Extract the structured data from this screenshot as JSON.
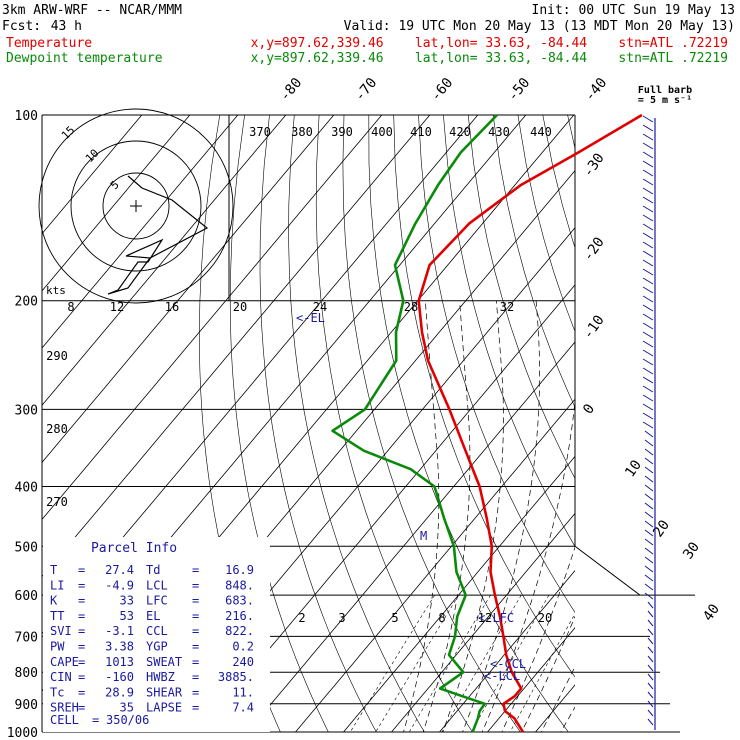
{
  "header": {
    "model": "3km ARW-WRF -- NCAR/MMM",
    "init": "Init: 00 UTC Sun 19 May 13",
    "fcst_label": "Fcst:",
    "fcst_value": "43 h",
    "valid": "Valid: 19 UTC Mon 20 May 13 (13 MDT Mon 20 May 13)",
    "temp_legend": "Temperature",
    "dew_legend": "Dewpoint temperature",
    "loc_line": "x,y=897.62,339.46    lat,lon= 33.63, -84.44    stn=ATL .72219",
    "full_barb_line1": "Full barb",
    "full_barb_line2": "= 5 m s⁻¹"
  },
  "colors": {
    "temperature": "#e00000",
    "dewpoint": "#0a8a0a",
    "wind": "#1a1aa0",
    "grid": "#000000"
  },
  "chart_data": {
    "type": "line",
    "subtype": "skew-T log-P diagram",
    "pressure_levels": [
      100,
      200,
      300,
      400,
      500,
      600,
      700,
      800,
      900,
      1000
    ],
    "pressure_axis_scale": "log",
    "isotherm_top_labels": [
      "-80",
      "-70",
      "-60",
      "-50",
      "-40"
    ],
    "isotherm_right_labels": [
      "-30",
      "-20",
      "-10",
      "0",
      "10",
      "20",
      "30",
      "40"
    ],
    "theta_labels": [
      "370",
      "380",
      "390",
      "400",
      "410",
      "420",
      "430",
      "440"
    ],
    "theta_left_labels": [
      "290",
      "280",
      "270"
    ],
    "mixing_ratio_labels_upper": [
      "8",
      "12",
      "16",
      "20",
      "24",
      "28",
      "32"
    ],
    "mixing_ratio_labels_lower": [
      "2",
      "3",
      "5",
      "8",
      "12",
      "20"
    ],
    "series": [
      {
        "name": "Temperature",
        "p": [
          1000,
          950,
          925,
          900,
          875,
          850,
          800,
          750,
          700,
          650,
          600,
          550,
          500,
          450,
          400,
          350,
          300,
          250,
          225,
          200,
          175,
          150,
          130,
          115,
          100
        ],
        "t": [
          27.4,
          23.2,
          20.0,
          18.4,
          19.4,
          19.4,
          14.6,
          10.4,
          6.6,
          2.4,
          -2.4,
          -7.4,
          -11.6,
          -17.6,
          -24.6,
          -33.8,
          -44.4,
          -57.4,
          -63.6,
          -69.8,
          -73.8,
          -72.8,
          -68.8,
          -62.5,
          -55.8
        ]
      },
      {
        "name": "Dewpoint temperature",
        "p": [
          1000,
          950,
          925,
          900,
          875,
          850,
          800,
          750,
          700,
          650,
          600,
          550,
          500,
          450,
          400,
          375,
          350,
          325,
          300,
          250,
          225,
          200,
          175,
          150,
          130,
          115,
          100
        ],
        "t": [
          16.9,
          15.6,
          14.7,
          14.5,
          8.5,
          2.5,
          4.5,
          -1.5,
          -3.5,
          -6.5,
          -8.5,
          -14.5,
          -19.5,
          -26.5,
          -34.0,
          -42.0,
          -55.0,
          -65.0,
          -62.0,
          -64.0,
          -69.0,
          -73.0,
          -81.0,
          -84.0,
          -86.0,
          -87.0,
          -86.0
        ]
      }
    ],
    "annotations": [
      "<-EL",
      "M",
      "<-LFC",
      "<-CCL",
      "<-LCL"
    ],
    "hodograph_rings": [
      "5",
      "10",
      "15"
    ],
    "hodograph_units": "kts"
  },
  "parcel_info": {
    "title": "Parcel Info",
    "rows": [
      [
        "T",
        "27.4",
        "Td",
        "16.9"
      ],
      [
        "LI",
        "-4.9",
        "LCL",
        "848."
      ],
      [
        "K",
        "33",
        "LFC",
        "683."
      ],
      [
        "TT",
        "53",
        "EL",
        "216."
      ],
      [
        "SVI",
        "-3.1",
        "CCL",
        "822."
      ],
      [
        "PW",
        "3.38",
        "YGP",
        "0.2"
      ],
      [
        "CAPE",
        "1013",
        "SWEAT",
        "240"
      ],
      [
        "CIN",
        "-160",
        "HWBZ",
        "3885."
      ],
      [
        "Tc",
        "28.9",
        "SHEAR",
        "11."
      ],
      [
        "SREH",
        "35",
        "LAPSE",
        "7.4"
      ]
    ],
    "cell_label": "CELL",
    "cell_value": "350/06"
  }
}
